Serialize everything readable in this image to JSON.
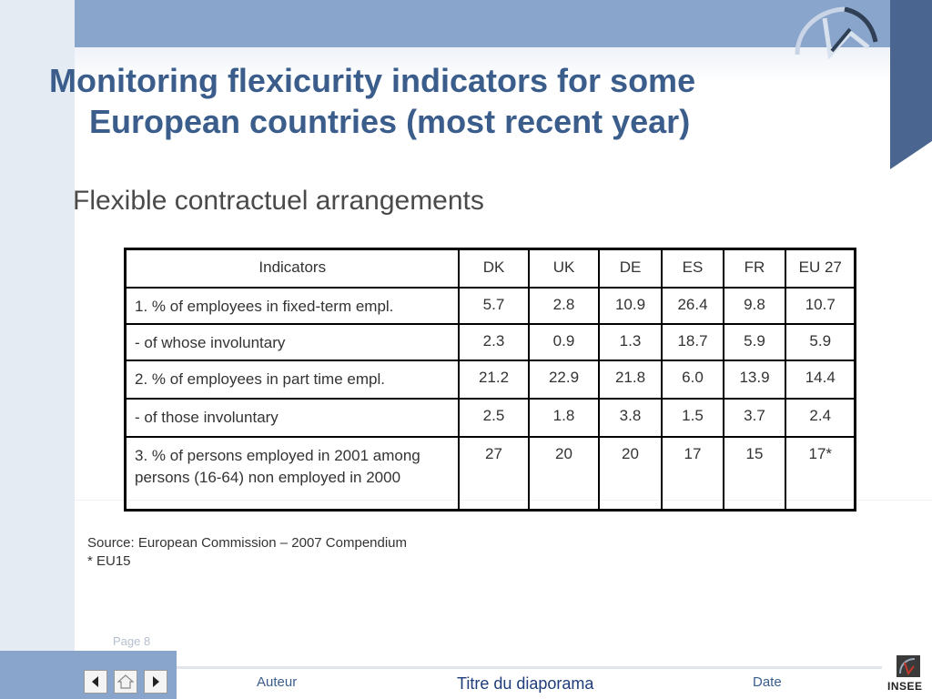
{
  "slide": {
    "title_line1": "Monitoring flexicurity indicators for some",
    "title_line2": "European countries (most recent year)",
    "subtitle": "Flexible contractuel arrangements",
    "page": "Page 8"
  },
  "table": {
    "header": [
      "Indicators",
      "DK",
      "UK",
      "DE",
      "ES",
      "FR",
      "EU 27"
    ],
    "rows": [
      {
        "label": "1. % of employees in fixed-term empl.",
        "values": [
          "5.7",
          "2.8",
          "10.9",
          "26.4",
          "9.8",
          "10.7"
        ]
      },
      {
        "label": "- of whose involuntary",
        "values": [
          "2.3",
          "0.9",
          "1.3",
          "18.7",
          "5.9",
          "5.9"
        ]
      },
      {
        "label": "2. % of employees in part time empl.",
        "values": [
          "21.2",
          "22.9",
          "21.8",
          "6.0",
          "13.9",
          "14.4"
        ]
      },
      {
        "label": "- of those involuntary",
        "values": [
          "2.5",
          "1.8",
          "3.8",
          "1.5",
          "3.7",
          "2.4"
        ]
      },
      {
        "label": "3. % of persons employed in 2001 among persons (16-64) non employed in 2000",
        "values": [
          "27",
          "20",
          "20",
          "17",
          "15",
          "17*"
        ]
      }
    ]
  },
  "notes": {
    "source": "Source: European Commission – 2007 Compendium",
    "footnote": "* EU15"
  },
  "footer": {
    "author": "Auteur",
    "presentation_title": "Titre du diaporama",
    "date": "Date",
    "logo_text": "INSEE",
    "nav_icons": [
      "previous-arrow-icon",
      "home-icon",
      "next-arrow-icon"
    ]
  },
  "colors": {
    "title": "#3b5d8c",
    "band": "#8aa5cb",
    "dark_strip": "#4a6690"
  }
}
